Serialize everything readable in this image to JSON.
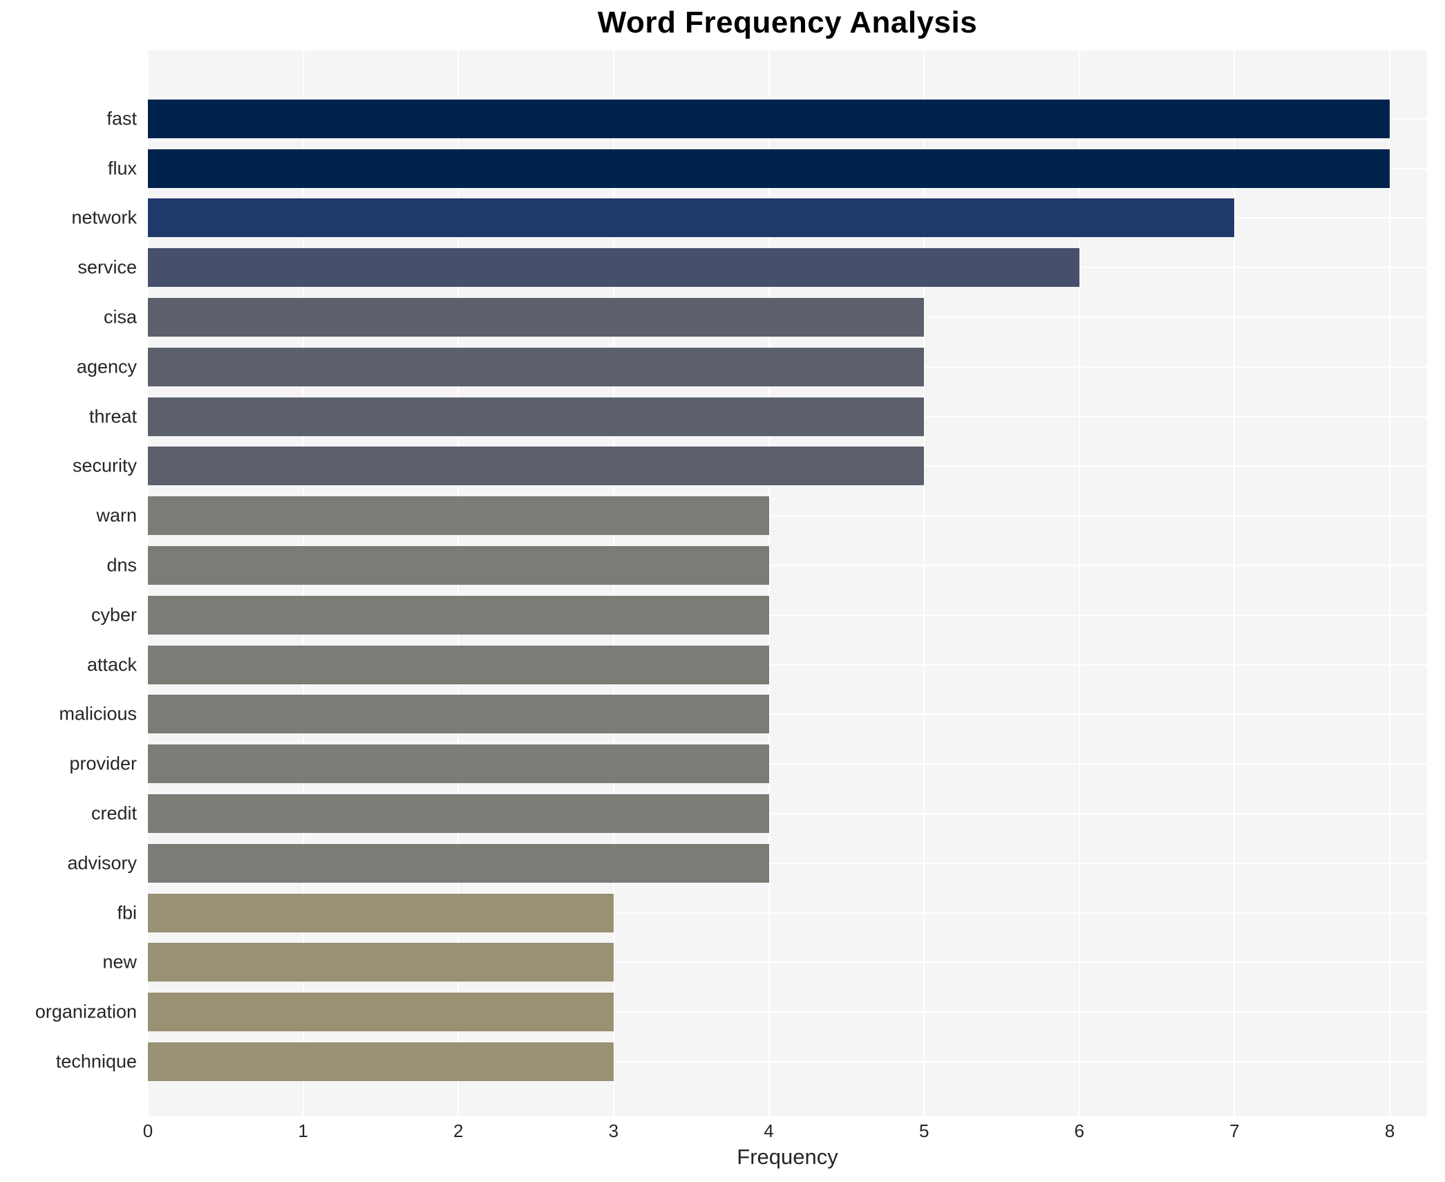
{
  "title": "Word Frequency Analysis",
  "chart_data": {
    "type": "bar",
    "orientation": "horizontal",
    "title": "Word Frequency Analysis",
    "xlabel": "Frequency",
    "ylabel": "",
    "xlim": [
      0,
      8.24
    ],
    "xticks": [
      0,
      1,
      2,
      3,
      4,
      5,
      6,
      7,
      8
    ],
    "grid": true,
    "legend_position": "none",
    "plot_background": "#f5f5f6",
    "gridline_color": "#ffffff",
    "categories": [
      "fast",
      "flux",
      "network",
      "service",
      "cisa",
      "agency",
      "threat",
      "security",
      "warn",
      "dns",
      "cyber",
      "attack",
      "malicious",
      "provider",
      "credit",
      "advisory",
      "fbi",
      "new",
      "organization",
      "technique"
    ],
    "values": [
      8,
      8,
      7,
      6,
      5,
      5,
      5,
      5,
      4,
      4,
      4,
      4,
      4,
      4,
      4,
      4,
      3,
      3,
      3,
      3
    ],
    "bar_colors": [
      "#00234d",
      "#00234d",
      "#20396b",
      "#46506c",
      "#5c606d",
      "#5c606d",
      "#5c606d",
      "#5c606d",
      "#7c7b76",
      "#7c7b76",
      "#7c7b76",
      "#7c7b76",
      "#7c7b76",
      "#7c7b76",
      "#7c7b76",
      "#7c7b76",
      "#999173",
      "#999173",
      "#999173",
      "#999173"
    ],
    "text_color": "#262626"
  }
}
